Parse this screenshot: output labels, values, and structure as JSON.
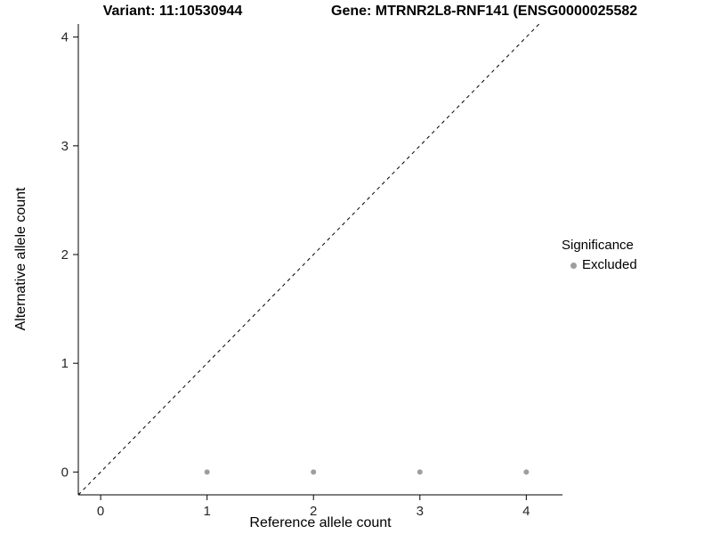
{
  "chart_data": {
    "type": "scatter",
    "title_left": "Variant: 11:10530944",
    "title_right": "Gene: MTRNR2L8-RNF141 (ENSG0000025582",
    "xlabel": "Reference allele count",
    "ylabel": "Alternative allele count",
    "xlim": [
      -0.21,
      4.34
    ],
    "ylim": [
      -0.21,
      4.12
    ],
    "x_ticks": [
      0,
      1,
      2,
      3,
      4
    ],
    "y_ticks": [
      0,
      1,
      2,
      3,
      4
    ],
    "series": [
      {
        "name": "Excluded",
        "color": "#9e9e9e",
        "points": [
          {
            "x": 1,
            "y": 0
          },
          {
            "x": 2,
            "y": 0
          },
          {
            "x": 3,
            "y": 0
          },
          {
            "x": 4,
            "y": 0
          }
        ]
      }
    ],
    "identity_line": {
      "style": "dashed",
      "color": "#000000",
      "equation": "y = x"
    },
    "legend": {
      "title": "Significance",
      "position": "right",
      "items": [
        {
          "label": "Excluded",
          "color": "#9e9e9e"
        }
      ]
    },
    "grid": false,
    "background": "#ffffff"
  }
}
